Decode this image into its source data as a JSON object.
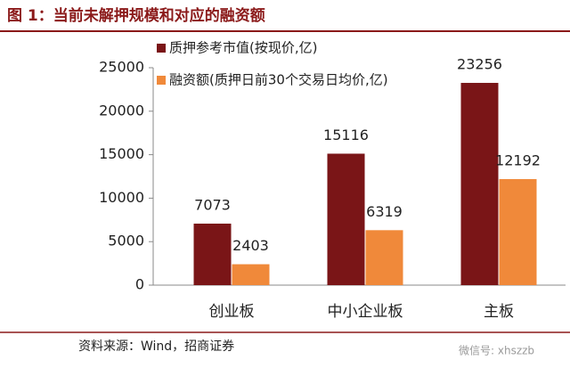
{
  "chart_data": {
    "type": "bar",
    "title": "图 1：当前未解押规模和对应的融资额",
    "source": "资料来源：Wind，招商证券",
    "watermark": "微信号: xhszzb",
    "categories": [
      "创业板",
      "中小企业板",
      "主板"
    ],
    "series": [
      {
        "name": "质押参考市值(按现价,亿)",
        "color": "#7a1517",
        "values": [
          7073,
          15116,
          23256
        ]
      },
      {
        "name": "融资额(质押日前30个交易日均价,亿)",
        "color": "#f0893a",
        "values": [
          2403,
          6319,
          12192
        ]
      }
    ],
    "ylim": [
      0,
      25000
    ],
    "yticks": [
      0,
      5000,
      10000,
      15000,
      20000,
      25000
    ],
    "grid": false
  }
}
